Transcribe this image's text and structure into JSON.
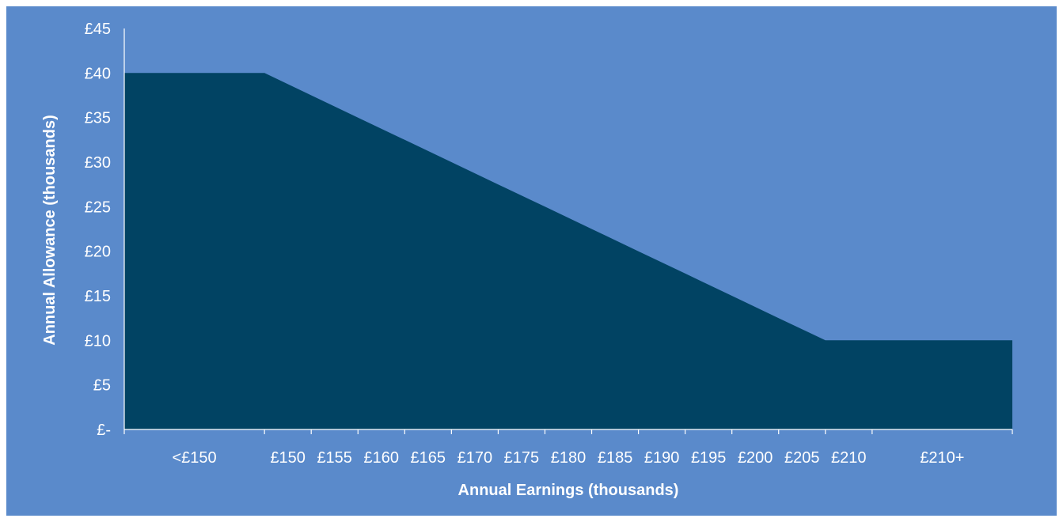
{
  "chart_data": {
    "type": "area",
    "title": "",
    "xlabel": "Annual Earnings (thousands)",
    "ylabel": "Annual Allowance (thousands)",
    "categories": [
      "<£150",
      "£150",
      "£155",
      "£160",
      "£165",
      "£170",
      "£175",
      "£180",
      "£185",
      "£190",
      "£195",
      "£200",
      "£205",
      "£210",
      "£210+"
    ],
    "y_ticks": [
      "£-",
      "£5",
      "£10",
      "£15",
      "£20",
      "£25",
      "£30",
      "£35",
      "£40",
      "£45"
    ],
    "values": [
      40,
      40,
      37.5,
      35,
      32.5,
      30,
      27.5,
      25,
      22.5,
      20,
      17.5,
      15,
      12.5,
      10,
      10
    ],
    "ylim": [
      0,
      45
    ],
    "grid": false,
    "legend": "none",
    "colors": {
      "background": "#5A8ACB",
      "area": "#014363",
      "text": "#ffffff",
      "axis": "#ffffff"
    }
  }
}
